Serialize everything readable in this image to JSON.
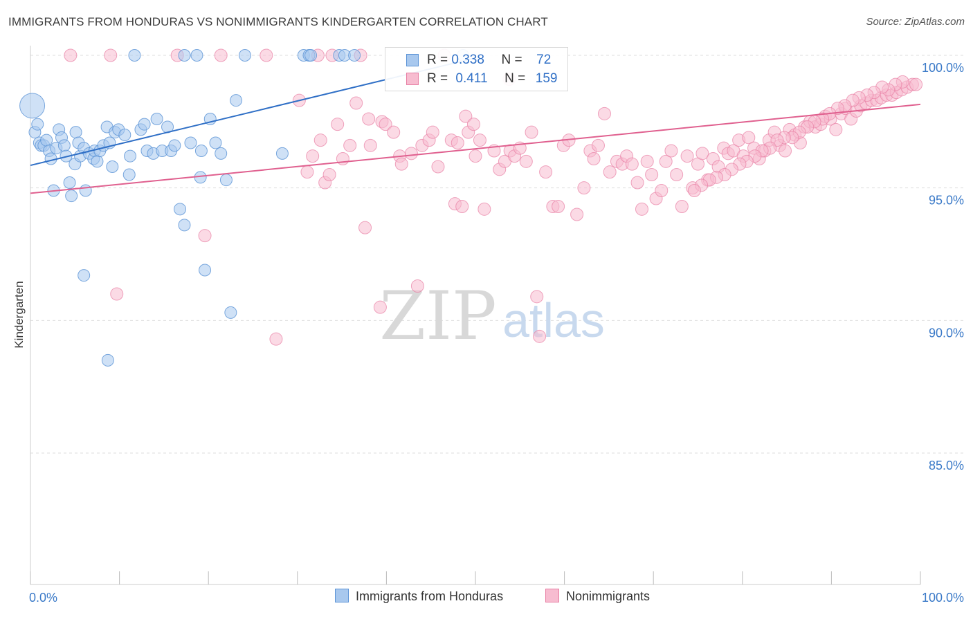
{
  "title": "IMMIGRANTS FROM HONDURAS VS NONIMMIGRANTS KINDERGARTEN CORRELATION CHART",
  "source": "Source: ZipAtlas.com",
  "watermark": {
    "zip": "ZIP",
    "atlas": "atlas"
  },
  "legend": {
    "r_label": "R =",
    "n_label": "N =",
    "series": [
      {
        "name": "Immigrants from Honduras",
        "r": "0.338",
        "n": "72",
        "color": "#a8c8ee",
        "edge": "#5b93d6"
      },
      {
        "name": "Nonimmigrants",
        "r": "0.411",
        "n": "159",
        "color": "#f7bcd0",
        "edge": "#e87fa4"
      }
    ]
  },
  "colors": {
    "blue_line": "#2f6fc6",
    "pink_line": "#e0608f",
    "tick_label": "#3b7ac8",
    "grid": "#dddddd"
  },
  "chart_data": {
    "type": "scatter",
    "title": "IMMIGRANTS FROM HONDURAS VS NONIMMIGRANTS KINDERGARTEN CORRELATION CHART",
    "xlabel": "",
    "ylabel": "Kindergarten",
    "xlim": [
      0,
      100
    ],
    "ylim": [
      80.5,
      100.5
    ],
    "x_tick_labels": {
      "left": "0.0%",
      "right": "100.0%"
    },
    "y_ticks": [
      100,
      95,
      90,
      85
    ],
    "y_tick_labels": [
      "100.0%",
      "95.0%",
      "90.0%",
      "85.0%"
    ],
    "grid": "dashed horizontal",
    "legend_position": "top-center",
    "series": [
      {
        "name": "Immigrants from Honduras",
        "trend": {
          "x0": 0,
          "y0": 95.85,
          "x1": 50,
          "y1": 99.9
        },
        "points": [
          [
            0.2,
            98.1
          ],
          [
            0.5,
            97.1
          ],
          [
            0.8,
            97.4
          ],
          [
            1.0,
            96.7
          ],
          [
            1.2,
            96.6
          ],
          [
            1.5,
            96.6
          ],
          [
            1.8,
            96.8
          ],
          [
            2.1,
            96.4
          ],
          [
            2.3,
            96.1
          ],
          [
            2.6,
            94.9
          ],
          [
            2.9,
            96.5
          ],
          [
            3.2,
            97.2
          ],
          [
            3.5,
            96.9
          ],
          [
            3.8,
            96.6
          ],
          [
            4.0,
            96.2
          ],
          [
            4.4,
            95.2
          ],
          [
            4.6,
            94.7
          ],
          [
            5.0,
            95.9
          ],
          [
            5.1,
            97.1
          ],
          [
            5.4,
            96.7
          ],
          [
            5.6,
            96.2
          ],
          [
            6.0,
            96.5
          ],
          [
            6.2,
            94.9
          ],
          [
            6.6,
            96.3
          ],
          [
            7.1,
            96.1
          ],
          [
            7.2,
            96.4
          ],
          [
            7.5,
            96.0
          ],
          [
            7.8,
            96.4
          ],
          [
            8.2,
            96.6
          ],
          [
            8.6,
            97.3
          ],
          [
            8.9,
            96.7
          ],
          [
            9.2,
            95.8
          ],
          [
            9.5,
            97.1
          ],
          [
            9.9,
            97.2
          ],
          [
            10.6,
            97.0
          ],
          [
            11.1,
            95.5
          ],
          [
            11.2,
            96.2
          ],
          [
            11.7,
            100.0
          ],
          [
            12.4,
            97.2
          ],
          [
            12.8,
            97.4
          ],
          [
            13.1,
            96.4
          ],
          [
            13.8,
            96.3
          ],
          [
            14.2,
            97.6
          ],
          [
            14.8,
            96.4
          ],
          [
            15.4,
            97.3
          ],
          [
            15.8,
            96.4
          ],
          [
            16.2,
            96.6
          ],
          [
            16.8,
            94.2
          ],
          [
            17.3,
            93.6
          ],
          [
            17.3,
            100.0
          ],
          [
            18.0,
            96.7
          ],
          [
            18.7,
            100.0
          ],
          [
            19.1,
            95.4
          ],
          [
            19.2,
            96.4
          ],
          [
            19.6,
            91.9
          ],
          [
            20.2,
            97.6
          ],
          [
            20.8,
            96.7
          ],
          [
            21.4,
            96.3
          ],
          [
            22.0,
            95.3
          ],
          [
            22.5,
            90.3
          ],
          [
            23.1,
            98.3
          ],
          [
            24.1,
            100.0
          ],
          [
            28.3,
            96.3
          ],
          [
            30.7,
            100.0
          ],
          [
            31.3,
            100.0
          ],
          [
            31.5,
            100.0
          ],
          [
            34.7,
            100.0
          ],
          [
            35.3,
            100.0
          ],
          [
            36.4,
            100.0
          ],
          [
            48.6,
            100.0
          ],
          [
            8.7,
            88.5
          ],
          [
            6.0,
            91.7
          ]
        ]
      },
      {
        "name": "Nonimmigrants",
        "trend": {
          "x0": 0,
          "y0": 94.8,
          "x1": 100,
          "y1": 98.15
        },
        "points": [
          [
            4.5,
            100.0
          ],
          [
            9.0,
            100.0
          ],
          [
            16.5,
            100.0
          ],
          [
            21.4,
            100.0
          ],
          [
            26.5,
            100.0
          ],
          [
            32.3,
            100.0
          ],
          [
            33.9,
            100.0
          ],
          [
            37.1,
            100.0
          ],
          [
            46.5,
            100.0
          ],
          [
            53.8,
            99.1
          ],
          [
            9.7,
            91.0
          ],
          [
            19.6,
            93.2
          ],
          [
            27.6,
            89.3
          ],
          [
            30.2,
            98.3
          ],
          [
            31.1,
            95.6
          ],
          [
            31.7,
            96.2
          ],
          [
            32.6,
            96.8
          ],
          [
            33.1,
            95.2
          ],
          [
            33.6,
            95.5
          ],
          [
            34.5,
            97.4
          ],
          [
            35.1,
            96.1
          ],
          [
            35.9,
            96.6
          ],
          [
            36.6,
            98.2
          ],
          [
            37.6,
            93.5
          ],
          [
            38.0,
            97.6
          ],
          [
            38.2,
            96.6
          ],
          [
            39.3,
            90.5
          ],
          [
            39.5,
            97.5
          ],
          [
            39.9,
            97.4
          ],
          [
            40.8,
            97.1
          ],
          [
            41.5,
            96.2
          ],
          [
            41.7,
            95.9
          ],
          [
            42.8,
            96.3
          ],
          [
            43.5,
            91.3
          ],
          [
            44.0,
            96.6
          ],
          [
            44.8,
            96.8
          ],
          [
            45.2,
            97.1
          ],
          [
            45.8,
            95.8
          ],
          [
            47.3,
            96.8
          ],
          [
            47.7,
            94.4
          ],
          [
            48.0,
            96.7
          ],
          [
            48.5,
            94.3
          ],
          [
            48.9,
            97.7
          ],
          [
            49.2,
            97.1
          ],
          [
            49.8,
            97.4
          ],
          [
            50.0,
            96.2
          ],
          [
            50.5,
            96.8
          ],
          [
            51.0,
            94.2
          ],
          [
            52.1,
            96.4
          ],
          [
            52.7,
            95.7
          ],
          [
            53.3,
            96.0
          ],
          [
            53.9,
            96.4
          ],
          [
            54.4,
            96.2
          ],
          [
            55.0,
            96.5
          ],
          [
            55.7,
            96.0
          ],
          [
            56.3,
            97.1
          ],
          [
            56.9,
            90.9
          ],
          [
            57.2,
            89.4
          ],
          [
            57.9,
            95.6
          ],
          [
            58.7,
            94.3
          ],
          [
            59.3,
            94.3
          ],
          [
            59.9,
            96.6
          ],
          [
            60.5,
            96.8
          ],
          [
            61.4,
            94.0
          ],
          [
            62.2,
            95.0
          ],
          [
            62.9,
            96.4
          ],
          [
            63.3,
            96.1
          ],
          [
            63.8,
            96.6
          ],
          [
            64.5,
            97.8
          ],
          [
            65.1,
            95.6
          ],
          [
            65.9,
            96.0
          ],
          [
            66.5,
            95.9
          ],
          [
            67.0,
            96.2
          ],
          [
            67.6,
            95.9
          ],
          [
            68.2,
            95.2
          ],
          [
            68.7,
            94.2
          ],
          [
            69.3,
            96.0
          ],
          [
            69.8,
            95.5
          ],
          [
            70.3,
            94.6
          ],
          [
            70.9,
            94.9
          ],
          [
            71.4,
            96.0
          ],
          [
            72.0,
            96.4
          ],
          [
            72.6,
            95.5
          ],
          [
            73.2,
            94.3
          ],
          [
            73.8,
            96.2
          ],
          [
            74.4,
            95.0
          ],
          [
            75.0,
            95.9
          ],
          [
            75.5,
            96.3
          ],
          [
            76.1,
            95.3
          ],
          [
            76.7,
            96.1
          ],
          [
            77.3,
            95.8
          ],
          [
            77.9,
            96.5
          ],
          [
            78.4,
            96.3
          ],
          [
            79.0,
            96.4
          ],
          [
            79.6,
            96.8
          ],
          [
            80.1,
            96.2
          ],
          [
            80.7,
            96.9
          ],
          [
            81.3,
            96.5
          ],
          [
            81.9,
            96.1
          ],
          [
            82.5,
            96.4
          ],
          [
            83.0,
            96.8
          ],
          [
            83.6,
            97.1
          ],
          [
            84.2,
            96.6
          ],
          [
            84.8,
            96.4
          ],
          [
            85.3,
            97.2
          ],
          [
            85.9,
            97.0
          ],
          [
            86.5,
            96.7
          ],
          [
            87.0,
            97.3
          ],
          [
            87.6,
            97.5
          ],
          [
            88.2,
            97.3
          ],
          [
            88.8,
            97.4
          ],
          [
            89.3,
            97.7
          ],
          [
            89.9,
            97.6
          ],
          [
            90.5,
            97.2
          ],
          [
            91.1,
            97.8
          ],
          [
            91.6,
            98.0
          ],
          [
            92.2,
            97.6
          ],
          [
            92.8,
            97.9
          ],
          [
            93.3,
            98.1
          ],
          [
            93.9,
            98.2
          ],
          [
            94.5,
            98.3
          ],
          [
            95.1,
            98.3
          ],
          [
            95.6,
            98.4
          ],
          [
            96.2,
            98.5
          ],
          [
            96.8,
            98.5
          ],
          [
            97.3,
            98.6
          ],
          [
            97.9,
            98.7
          ],
          [
            98.5,
            98.8
          ],
          [
            99.1,
            98.9
          ],
          [
            99.5,
            98.9
          ],
          [
            98.0,
            99.0
          ],
          [
            97.2,
            98.9
          ],
          [
            96.4,
            98.7
          ],
          [
            95.7,
            98.8
          ],
          [
            94.8,
            98.6
          ],
          [
            94.0,
            98.5
          ],
          [
            93.1,
            98.4
          ],
          [
            92.4,
            98.3
          ],
          [
            91.5,
            98.1
          ],
          [
            90.7,
            98.0
          ],
          [
            89.8,
            97.8
          ],
          [
            89.0,
            97.6
          ],
          [
            88.1,
            97.5
          ],
          [
            87.3,
            97.3
          ],
          [
            86.4,
            97.1
          ],
          [
            85.6,
            96.9
          ],
          [
            84.7,
            96.9
          ],
          [
            83.9,
            96.8
          ],
          [
            83.1,
            96.5
          ],
          [
            82.2,
            96.4
          ],
          [
            81.4,
            96.2
          ],
          [
            80.5,
            96.0
          ],
          [
            79.7,
            95.9
          ],
          [
            78.8,
            95.7
          ],
          [
            78.0,
            95.5
          ],
          [
            77.1,
            95.4
          ],
          [
            76.3,
            95.3
          ],
          [
            75.4,
            95.1
          ],
          [
            74.6,
            94.9
          ]
        ]
      }
    ]
  }
}
